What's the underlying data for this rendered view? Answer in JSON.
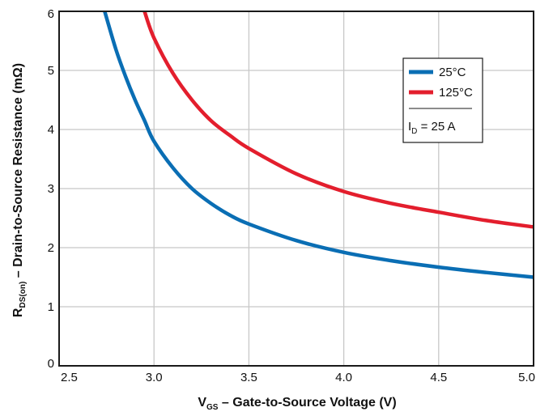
{
  "chart_data": {
    "type": "line",
    "title": "",
    "xlabel": {
      "main": "V",
      "sub": "GS",
      "rest": " – Gate-to-Source Voltage (V)"
    },
    "ylabel": {
      "main": "R",
      "sub": "DS(on)",
      "rest": " – Drain-to-Source Resistance (mΩ)"
    },
    "xlim": [
      2.5,
      5.0
    ],
    "ylim": [
      0,
      6
    ],
    "xticks": [
      "2.5",
      "3.0",
      "3.5",
      "4.0",
      "4.5",
      "5.0"
    ],
    "yticks": [
      "0",
      "1",
      "2",
      "3",
      "4",
      "5",
      "6"
    ],
    "grid": true,
    "legend_position": "top-right",
    "series": [
      {
        "name": "25°C",
        "color": "#0a6eb4",
        "x": [
          2.74,
          2.8,
          2.85,
          2.9,
          2.95,
          3.0,
          3.1,
          3.2,
          3.3,
          3.4,
          3.5,
          3.75,
          4.0,
          4.25,
          4.5,
          4.75,
          5.0
        ],
        "y": [
          6.0,
          5.35,
          4.9,
          4.5,
          4.15,
          3.8,
          3.35,
          3.0,
          2.75,
          2.55,
          2.4,
          2.12,
          1.92,
          1.78,
          1.67,
          1.58,
          1.5
        ]
      },
      {
        "name": "125°C",
        "color": "#e31e2d",
        "x": [
          2.95,
          3.0,
          3.1,
          3.2,
          3.3,
          3.4,
          3.5,
          3.75,
          4.0,
          4.25,
          4.5,
          4.75,
          5.0
        ],
        "y": [
          6.0,
          5.55,
          4.95,
          4.5,
          4.15,
          3.9,
          3.68,
          3.25,
          2.95,
          2.75,
          2.6,
          2.46,
          2.35
        ]
      }
    ],
    "annotation": {
      "main": "I",
      "sub": "D",
      "rest": " = 25 A"
    }
  }
}
